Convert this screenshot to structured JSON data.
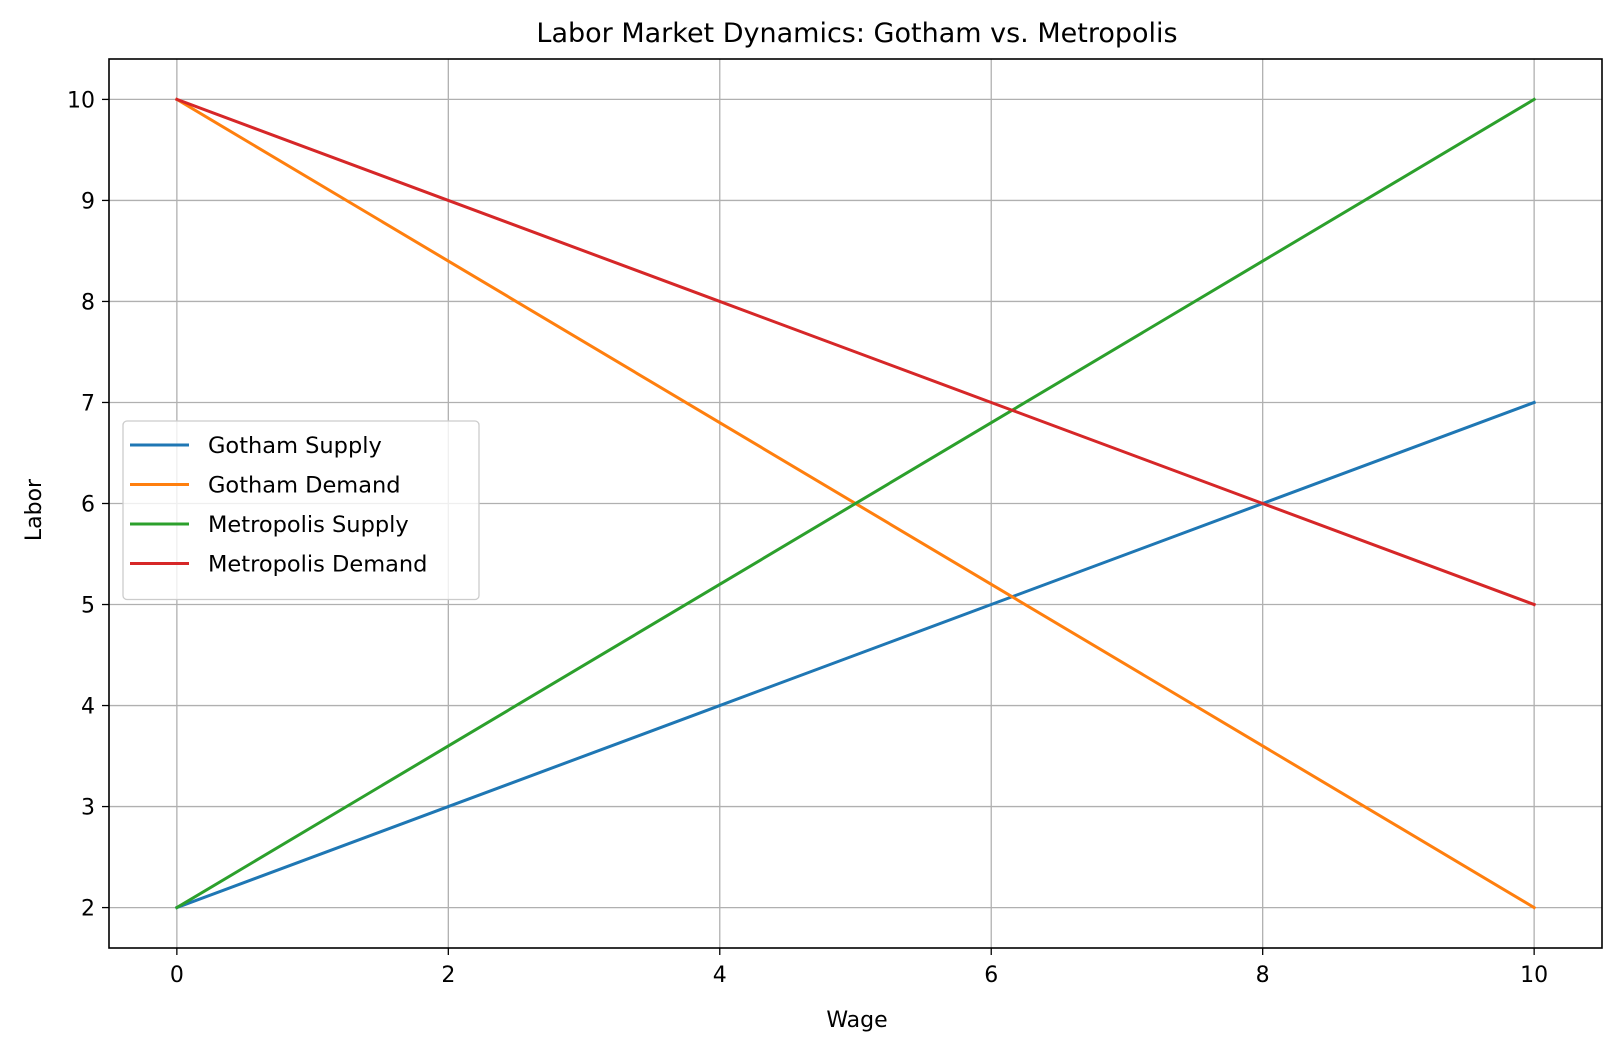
{
  "chart_data": {
    "type": "line",
    "title": "Labor Market Dynamics: Gotham vs. Metropolis",
    "xlabel": "Wage",
    "ylabel": "Labor",
    "x": [
      0,
      2,
      4,
      6,
      8,
      10
    ],
    "xlim": [
      -0.5,
      10.5
    ],
    "ylim": [
      1.6,
      10.4
    ],
    "xticks": [
      0,
      2,
      4,
      6,
      8,
      10
    ],
    "yticks": [
      2,
      3,
      4,
      5,
      6,
      7,
      8,
      9,
      10
    ],
    "grid": true,
    "legend_position": "center-left",
    "series": [
      {
        "name": "Gotham Supply",
        "color": "#1f77b4",
        "values": [
          2,
          3,
          4,
          5,
          6,
          7
        ]
      },
      {
        "name": "Gotham Demand",
        "color": "#ff7f0e",
        "values": [
          10,
          8.4,
          6.8,
          5.2,
          3.6,
          2
        ]
      },
      {
        "name": "Metropolis Supply",
        "color": "#2ca02c",
        "values": [
          2,
          3.6,
          5.2,
          6.8,
          8.4,
          10
        ]
      },
      {
        "name": "Metropolis Demand",
        "color": "#d62728",
        "values": [
          10,
          9,
          8,
          7,
          6,
          5
        ]
      }
    ]
  }
}
